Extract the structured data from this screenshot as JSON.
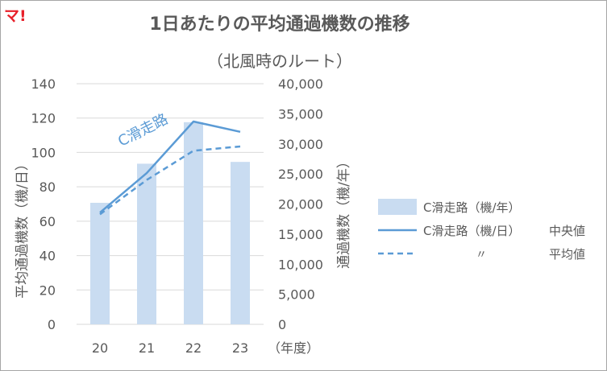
{
  "logo": {
    "text": "マ!",
    "color": "#e8202a"
  },
  "chart_data": {
    "type": "bar",
    "title": "1日あたりの平均通過機数の推移",
    "subtitle": "（北風時のルート）",
    "categories": [
      "20",
      "21",
      "22",
      "23"
    ],
    "x_unit_label": "（年度）",
    "left_axis": {
      "label": "平均通過機数（機/日）",
      "ylim": [
        0,
        140
      ],
      "ticks": [
        "0",
        "20",
        "40",
        "60",
        "80",
        "100",
        "120",
        "140"
      ]
    },
    "right_axis": {
      "label": "通過機数（機/年）",
      "ylim": [
        0,
        40000
      ],
      "ticks": [
        "0",
        "5,000",
        "10,000",
        "15,000",
        "20,000",
        "25,000",
        "30,000",
        "35,000",
        "40,000"
      ]
    },
    "series": [
      {
        "name": "C滑走路（機/年）",
        "type": "bar",
        "axis": "right",
        "values": [
          20200,
          26700,
          33600,
          27000
        ],
        "color": "#c9dcf1"
      },
      {
        "name": "C滑走路（機/日）中央値",
        "type": "line",
        "axis": "left",
        "values": [
          65,
          88,
          118,
          112
        ],
        "color": "#5b9bd5",
        "style": "solid"
      },
      {
        "name": "平均値",
        "type": "line",
        "axis": "left",
        "values": [
          64,
          84,
          101,
          103.5
        ],
        "color": "#5b9bd5",
        "style": "dashed"
      }
    ],
    "legend": {
      "placement": "right",
      "bar_label": "C滑走路（機/年）",
      "median_label": "C滑走路（機/日）",
      "median_suffix": "中央値",
      "ditto_mark": "〃",
      "mean_suffix": "平均値"
    },
    "annotations": [
      {
        "text": "C滑走路",
        "color": "#5b9bd5"
      }
    ]
  }
}
